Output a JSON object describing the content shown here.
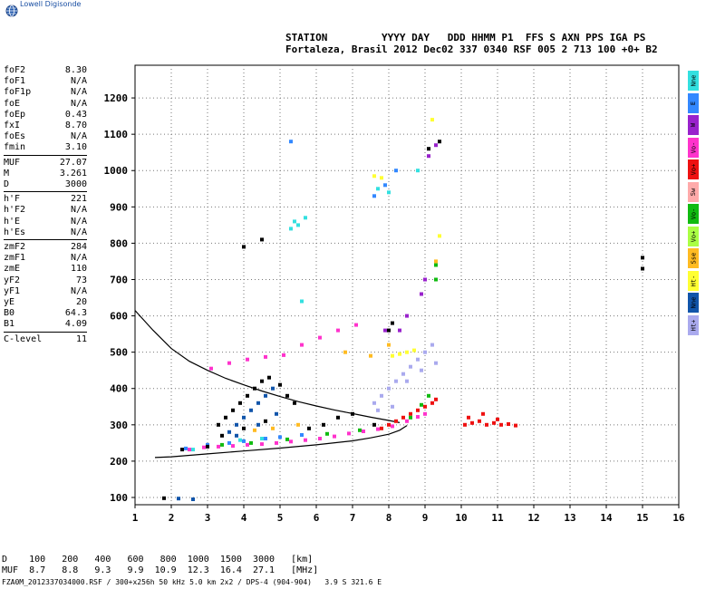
{
  "app": {
    "logo_text": "Lowell Digisonde"
  },
  "header": {
    "line1": "STATION         YYYY DAY   DDD HHMM P1  FFS S AXN PPS IGA PS",
    "line2": "Fortaleza, Brasil 2012 Dec02 337 0340 RSF 005 2 713 100 +0+ B2"
  },
  "params": [
    {
      "k": "foF2",
      "v": "8.30"
    },
    {
      "k": "foF1",
      "v": "N/A"
    },
    {
      "k": "foF1p",
      "v": "N/A"
    },
    {
      "k": "foE",
      "v": "N/A"
    },
    {
      "k": "foEp",
      "v": "0.43"
    },
    {
      "k": "fxI",
      "v": "8.70"
    },
    {
      "k": "foEs",
      "v": "N/A"
    },
    {
      "k": "fmin",
      "v": "3.10"
    },
    {
      "k": "MUF",
      "v": "27.07"
    },
    {
      "k": "M",
      "v": "3.261"
    },
    {
      "k": "D",
      "v": "3000"
    },
    {
      "k": "h'F",
      "v": "221"
    },
    {
      "k": "h'F2",
      "v": "N/A"
    },
    {
      "k": "h'E",
      "v": "N/A"
    },
    {
      "k": "h'Es",
      "v": "N/A"
    },
    {
      "k": "zmF2",
      "v": "284"
    },
    {
      "k": "zmF1",
      "v": "N/A"
    },
    {
      "k": "zmE",
      "v": "110"
    },
    {
      "k": "yF2",
      "v": "73"
    },
    {
      "k": "yF1",
      "v": "N/A"
    },
    {
      "k": "yE",
      "v": "20"
    },
    {
      "k": "B0",
      "v": "64.3"
    },
    {
      "k": "B1",
      "v": "4.09"
    },
    {
      "k": "C-level",
      "v": "11"
    }
  ],
  "legend": [
    {
      "label": "Nne",
      "color": "#33e0e0"
    },
    {
      "label": "E",
      "color": "#3388ff"
    },
    {
      "label": "W",
      "color": "#9922cc"
    },
    {
      "label": "Vo-",
      "color": "#ff33cc"
    },
    {
      "label": "Vo+",
      "color": "#ee1111"
    },
    {
      "label": "Sw",
      "color": "#ffaaaa"
    },
    {
      "label": "Vo-",
      "color": "#11bb11"
    },
    {
      "label": "Vo+",
      "color": "#aaff44"
    },
    {
      "label": "Sse",
      "color": "#ffbb22"
    },
    {
      "label": "Ht-",
      "color": "#ffff33"
    },
    {
      "label": "Nne",
      "color": "#1155aa"
    },
    {
      "label": "Ht+",
      "color": "#aaaaee"
    }
  ],
  "footer": {
    "d_row": "D    100   200   400   600   800  1000  1500  3000   [km]",
    "muf_row": "MUF  8.7   8.8   9.3   9.9  10.9  12.3  16.4  27.1   [MHz]",
    "info": "FZA0M_2012337034000.RSF / 300+x256h 50 kHz 5.0 km 2x2 / DPS-4 (904-904)   3.9 S 321.6 E"
  },
  "chart_data": {
    "type": "scatter",
    "title": "",
    "xlabel": "",
    "ylabel": "",
    "xlim": [
      1,
      16
    ],
    "ylim": [
      80,
      1290
    ],
    "x_ticks": [
      "1",
      "2",
      "3",
      "4",
      "5",
      "6",
      "7",
      "8",
      "9",
      "10",
      "11",
      "12",
      "13",
      "14",
      "15",
      "16"
    ],
    "y_ticks": [
      "100",
      "200",
      "300",
      "400",
      "500",
      "600",
      "700",
      "800",
      "900",
      "1000",
      "1100",
      "1200"
    ],
    "grid": true,
    "series": [
      {
        "color": "#000000",
        "kind": "curve",
        "points": [
          [
            1.0,
            615
          ],
          [
            1.5,
            560
          ],
          [
            2.0,
            510
          ],
          [
            2.5,
            475
          ],
          [
            3.0,
            450
          ],
          [
            3.5,
            428
          ],
          [
            4.0,
            410
          ],
          [
            4.5,
            393
          ],
          [
            5.0,
            378
          ],
          [
            5.5,
            364
          ],
          [
            6.0,
            352
          ],
          [
            6.5,
            341
          ],
          [
            7.0,
            331
          ],
          [
            7.5,
            321
          ],
          [
            8.0,
            312
          ],
          [
            8.3,
            306
          ]
        ]
      },
      {
        "color": "#000000",
        "kind": "curve",
        "points": [
          [
            1.55,
            210
          ],
          [
            2.0,
            212
          ],
          [
            3.0,
            220
          ],
          [
            4.0,
            228
          ],
          [
            5.0,
            236
          ],
          [
            6.0,
            245
          ],
          [
            7.0,
            256
          ],
          [
            7.5,
            264
          ],
          [
            8.0,
            274
          ],
          [
            8.3,
            285
          ],
          [
            8.5,
            298
          ]
        ]
      },
      {
        "color": "#ff33cc",
        "kind": "points",
        "points": [
          [
            2.5,
            232
          ],
          [
            2.9,
            238
          ],
          [
            3.3,
            240
          ],
          [
            3.7,
            242
          ],
          [
            4.1,
            245
          ],
          [
            4.5,
            247
          ],
          [
            4.9,
            250
          ],
          [
            5.3,
            254
          ],
          [
            5.7,
            258
          ],
          [
            6.1,
            262
          ],
          [
            6.5,
            268
          ],
          [
            6.9,
            276
          ],
          [
            7.3,
            282
          ],
          [
            7.7,
            288
          ],
          [
            8.1,
            296
          ],
          [
            8.5,
            310
          ],
          [
            8.8,
            322
          ],
          [
            9.0,
            330
          ],
          [
            3.1,
            455
          ],
          [
            3.6,
            470
          ],
          [
            4.1,
            480
          ],
          [
            4.6,
            487
          ],
          [
            5.1,
            492
          ],
          [
            5.6,
            520
          ],
          [
            6.1,
            540
          ],
          [
            6.6,
            560
          ],
          [
            7.1,
            575
          ]
        ]
      },
      {
        "color": "#ee1111",
        "kind": "points",
        "points": [
          [
            7.8,
            290
          ],
          [
            8.0,
            300
          ],
          [
            8.2,
            310
          ],
          [
            8.4,
            320
          ],
          [
            8.6,
            330
          ],
          [
            8.8,
            340
          ],
          [
            9.0,
            350
          ],
          [
            9.2,
            360
          ],
          [
            9.3,
            370
          ],
          [
            10.1,
            300
          ],
          [
            10.3,
            305
          ],
          [
            10.5,
            310
          ],
          [
            10.7,
            300
          ],
          [
            10.9,
            305
          ],
          [
            11.1,
            300
          ],
          [
            11.3,
            302
          ],
          [
            11.5,
            298
          ],
          [
            10.2,
            320
          ],
          [
            10.6,
            330
          ],
          [
            11.0,
            315
          ]
        ]
      },
      {
        "color": "#11bb11",
        "kind": "points",
        "points": [
          [
            3.4,
            245
          ],
          [
            4.2,
            250
          ],
          [
            5.2,
            260
          ],
          [
            6.3,
            275
          ],
          [
            7.2,
            285
          ],
          [
            8.6,
            320
          ],
          [
            8.9,
            355
          ],
          [
            9.1,
            380
          ],
          [
            9.3,
            700
          ],
          [
            9.3,
            740
          ]
        ]
      },
      {
        "color": "#3388ff",
        "kind": "points",
        "points": [
          [
            2.4,
            235
          ],
          [
            3.0,
            245
          ],
          [
            3.6,
            250
          ],
          [
            4.0,
            255
          ],
          [
            4.6,
            262
          ],
          [
            5.0,
            266
          ],
          [
            5.6,
            272
          ],
          [
            7.6,
            930
          ],
          [
            7.9,
            960
          ],
          [
            8.2,
            1000
          ],
          [
            5.3,
            1080
          ]
        ]
      },
      {
        "color": "#33e0e0",
        "kind": "points",
        "points": [
          [
            2.6,
            232
          ],
          [
            3.9,
            258
          ],
          [
            4.5,
            262
          ],
          [
            5.3,
            840
          ],
          [
            5.4,
            860
          ],
          [
            5.5,
            850
          ],
          [
            5.7,
            870
          ],
          [
            7.7,
            950
          ],
          [
            8.0,
            940
          ],
          [
            8.8,
            1000
          ],
          [
            5.6,
            640
          ]
        ]
      },
      {
        "color": "#aaaaee",
        "kind": "points",
        "points": [
          [
            7.6,
            360
          ],
          [
            7.8,
            380
          ],
          [
            8.0,
            400
          ],
          [
            8.2,
            420
          ],
          [
            8.4,
            440
          ],
          [
            8.6,
            460
          ],
          [
            8.8,
            480
          ],
          [
            9.0,
            500
          ],
          [
            9.2,
            520
          ],
          [
            7.7,
            340
          ],
          [
            8.1,
            350
          ],
          [
            8.5,
            420
          ],
          [
            8.9,
            450
          ],
          [
            9.3,
            470
          ]
        ]
      },
      {
        "color": "#ffff33",
        "kind": "points",
        "points": [
          [
            8.1,
            490
          ],
          [
            8.3,
            495
          ],
          [
            8.5,
            500
          ],
          [
            8.7,
            505
          ],
          [
            7.8,
            980
          ],
          [
            7.6,
            985
          ],
          [
            9.2,
            1140
          ],
          [
            9.4,
            820
          ]
        ]
      },
      {
        "color": "#9922cc",
        "kind": "points",
        "points": [
          [
            8.3,
            560
          ],
          [
            8.5,
            600
          ],
          [
            8.9,
            660
          ],
          [
            9.0,
            700
          ],
          [
            9.1,
            1040
          ],
          [
            9.3,
            1070
          ],
          [
            7.9,
            560
          ]
        ]
      },
      {
        "color": "#ffbb22",
        "kind": "points",
        "points": [
          [
            4.3,
            285
          ],
          [
            4.8,
            290
          ],
          [
            5.5,
            300
          ],
          [
            6.8,
            500
          ],
          [
            7.5,
            490
          ],
          [
            8.0,
            520
          ],
          [
            9.3,
            750
          ]
        ]
      },
      {
        "color": "#1155aa",
        "kind": "points",
        "points": [
          [
            3.6,
            280
          ],
          [
            3.8,
            300
          ],
          [
            4.0,
            320
          ],
          [
            4.2,
            340
          ],
          [
            4.4,
            360
          ],
          [
            4.6,
            380
          ],
          [
            4.8,
            400
          ],
          [
            3.8,
            270
          ],
          [
            4.4,
            300
          ],
          [
            4.9,
            330
          ],
          [
            2.2,
            97
          ],
          [
            2.6,
            95
          ]
        ]
      },
      {
        "color": "#000000",
        "kind": "points",
        "points": [
          [
            3.3,
            300
          ],
          [
            3.5,
            320
          ],
          [
            3.7,
            340
          ],
          [
            3.9,
            360
          ],
          [
            4.1,
            380
          ],
          [
            4.3,
            400
          ],
          [
            4.5,
            420
          ],
          [
            4.7,
            430
          ],
          [
            5.0,
            410
          ],
          [
            5.2,
            380
          ],
          [
            5.4,
            360
          ],
          [
            3.4,
            270
          ],
          [
            4.0,
            290
          ],
          [
            4.6,
            310
          ],
          [
            5.8,
            290
          ],
          [
            6.2,
            300
          ],
          [
            6.6,
            320
          ],
          [
            7.0,
            330
          ],
          [
            8.0,
            560
          ],
          [
            8.1,
            580
          ],
          [
            9.1,
            1060
          ],
          [
            9.4,
            1080
          ],
          [
            4.0,
            790
          ],
          [
            4.5,
            810
          ],
          [
            1.8,
            98
          ],
          [
            15.0,
            760
          ],
          [
            15.0,
            730
          ],
          [
            3.0,
            240
          ],
          [
            2.3,
            232
          ],
          [
            7.6,
            300
          ]
        ]
      }
    ]
  }
}
